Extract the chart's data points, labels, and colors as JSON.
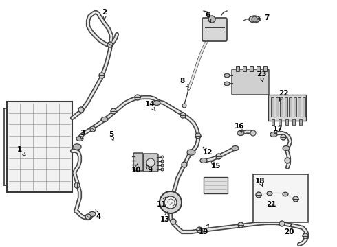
{
  "background_color": "#ffffff",
  "line_color": "#3a3a3a",
  "label_color": "#000000",
  "figsize": [
    4.9,
    3.6
  ],
  "dpi": 100,
  "labels": {
    "1": [
      28,
      218,
      38,
      228
    ],
    "2": [
      152,
      18,
      152,
      32
    ],
    "3": [
      120,
      194,
      118,
      204
    ],
    "4": [
      143,
      316,
      138,
      303
    ],
    "5": [
      162,
      196,
      165,
      206
    ],
    "6": [
      302,
      22,
      308,
      36
    ],
    "7": [
      388,
      26,
      370,
      28
    ],
    "8": [
      265,
      118,
      275,
      128
    ],
    "9": [
      218,
      248,
      212,
      240
    ],
    "10": [
      198,
      248,
      200,
      238
    ],
    "11": [
      235,
      298,
      242,
      286
    ],
    "12": [
      302,
      222,
      295,
      214
    ],
    "13": [
      240,
      320,
      244,
      308
    ],
    "14": [
      218,
      152,
      226,
      162
    ],
    "15": [
      314,
      242,
      306,
      234
    ],
    "16": [
      348,
      184,
      352,
      194
    ],
    "17": [
      404,
      188,
      398,
      196
    ],
    "18": [
      378,
      264,
      382,
      272
    ],
    "19": [
      296,
      338,
      304,
      326
    ],
    "20": [
      420,
      338,
      424,
      326
    ],
    "21": [
      394,
      298,
      400,
      304
    ],
    "22": [
      412,
      136,
      406,
      148
    ],
    "23": [
      380,
      108,
      382,
      120
    ]
  }
}
